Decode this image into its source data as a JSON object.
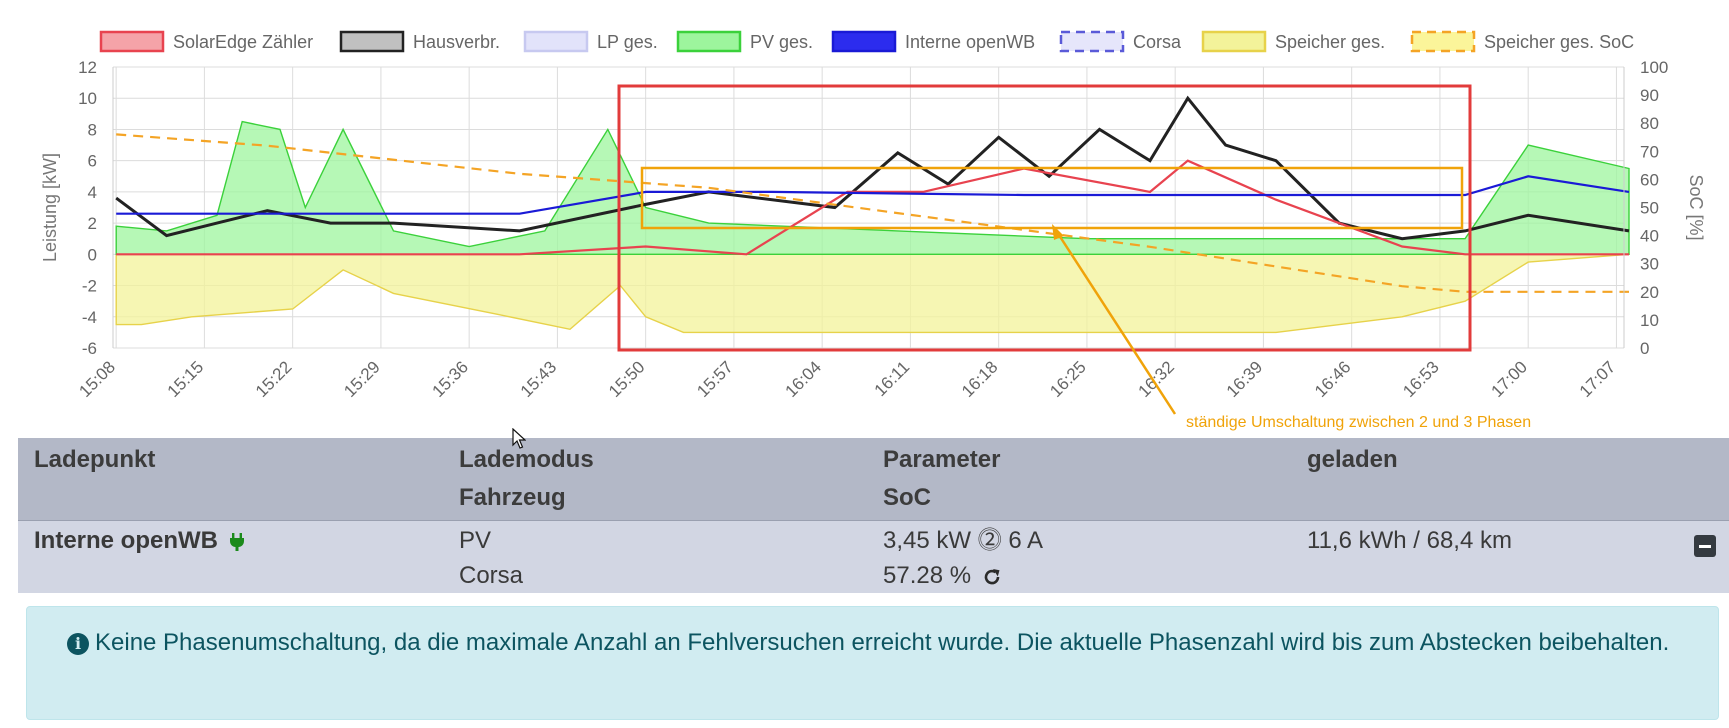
{
  "chart_data": {
    "type": "area",
    "legend": [
      {
        "name": "SolarEdge Zähler",
        "color": "#e8434f",
        "fill": "#f5a3a8",
        "dashed": false
      },
      {
        "name": "Hausverbr.",
        "color": "#222222",
        "fill": "#c0c0c0",
        "dashed": false
      },
      {
        "name": "LP ges.",
        "color": "#c7c9f0",
        "fill": "#e2e3fa",
        "dashed": false
      },
      {
        "name": "PV ges.",
        "color": "#3bd13b",
        "fill": "#9df59d",
        "dashed": false
      },
      {
        "name": "Interne openWB",
        "color": "#1a1ad6",
        "fill": "#2c2cee",
        "dashed": false
      },
      {
        "name": "Corsa",
        "color": "#5a5ad8",
        "fill": "#e6e6fb",
        "dashed": true
      },
      {
        "name": "Speicher ges.",
        "color": "#e7d24a",
        "fill": "#f3f39a",
        "dashed": false
      },
      {
        "name": "Speicher ges. SoC",
        "color": "#f4a425",
        "fill": "#fbf59a",
        "dashed": true
      }
    ],
    "x_ticks": [
      "15:08",
      "15:15",
      "15:22",
      "15:29",
      "15:36",
      "15:43",
      "15:50",
      "15:57",
      "16:04",
      "16:11",
      "16:18",
      "16:25",
      "16:32",
      "16:39",
      "16:46",
      "16:53",
      "17:00",
      "17:07"
    ],
    "ylabel": "Leistung [kW]",
    "ylim": [
      -6,
      12
    ],
    "y_ticks": [
      12,
      10,
      8,
      6,
      4,
      2,
      0,
      -2,
      -4,
      -6
    ],
    "y2label": "SoC [%]",
    "y2lim": [
      0,
      100
    ],
    "y2_ticks": [
      100,
      90,
      80,
      70,
      60,
      50,
      40,
      30,
      20,
      10,
      0
    ],
    "grid": true,
    "legend_position": "top",
    "series": [
      {
        "name": "Speicher ges.",
        "kind": "area",
        "x": [
          "15:08",
          "15:10",
          "15:14",
          "15:22",
          "15:26",
          "15:30",
          "15:38",
          "15:44",
          "15:48",
          "15:50",
          "15:53",
          "16:00",
          "16:20",
          "16:40",
          "16:50",
          "16:55",
          "17:00",
          "17:08"
        ],
        "values": [
          -4.5,
          -4.5,
          -4.0,
          -3.5,
          -1.0,
          -2.5,
          -3.8,
          -4.8,
          -2.0,
          -4.0,
          -5.0,
          -5.0,
          -5.0,
          -5.0,
          -4.0,
          -3.0,
          -0.5,
          0.0
        ]
      },
      {
        "name": "PV ges.",
        "kind": "area",
        "x": [
          "15:08",
          "15:12",
          "15:16",
          "15:18",
          "15:21",
          "15:23",
          "15:26",
          "15:30",
          "15:36",
          "15:42",
          "15:47",
          "15:50",
          "15:55",
          "16:10",
          "16:25",
          "16:40",
          "16:50",
          "16:55",
          "17:00",
          "17:08"
        ],
        "values": [
          1.8,
          1.5,
          2.5,
          8.5,
          8.0,
          3.0,
          8.0,
          1.5,
          0.5,
          1.5,
          8.0,
          3.0,
          2.0,
          1.5,
          1.0,
          1.0,
          1.0,
          1.0,
          7.0,
          5.5
        ]
      },
      {
        "name": "Hausverbr.",
        "kind": "line",
        "x": [
          "15:08",
          "15:12",
          "15:16",
          "15:20",
          "15:25",
          "15:30",
          "15:40",
          "15:50",
          "15:55",
          "16:05",
          "16:10",
          "16:14",
          "16:18",
          "16:22",
          "16:26",
          "16:30",
          "16:33",
          "16:36",
          "16:40",
          "16:45",
          "16:50",
          "16:55",
          "17:00",
          "17:08"
        ],
        "values": [
          3.6,
          1.2,
          2.0,
          2.8,
          2.0,
          2.0,
          1.5,
          3.2,
          4.0,
          3.0,
          6.5,
          4.5,
          7.5,
          5.0,
          8.0,
          6.0,
          10.0,
          7.0,
          6.0,
          2.0,
          1.0,
          1.5,
          2.5,
          1.5
        ]
      },
      {
        "name": "SolarEdge Zähler",
        "kind": "line",
        "x": [
          "15:08",
          "15:20",
          "15:40",
          "15:50",
          "15:58",
          "16:06",
          "16:12",
          "16:20",
          "16:30",
          "16:33",
          "16:40",
          "16:50",
          "16:55",
          "17:08"
        ],
        "values": [
          0,
          0,
          0,
          0.5,
          0,
          4.0,
          4.0,
          5.5,
          4.0,
          6.0,
          3.5,
          0.5,
          0,
          0
        ]
      },
      {
        "name": "Interne openWB",
        "kind": "line",
        "x": [
          "15:08",
          "15:20",
          "15:40",
          "15:50",
          "16:00",
          "16:20",
          "16:40",
          "16:55",
          "17:00",
          "17:08"
        ],
        "values": [
          2.6,
          2.6,
          2.6,
          4.0,
          4.0,
          3.8,
          3.8,
          3.8,
          5.0,
          4.0
        ]
      },
      {
        "name": "Speicher ges. SoC",
        "kind": "line",
        "axis": "y2",
        "x": [
          "15:08",
          "15:20",
          "15:40",
          "15:55",
          "16:10",
          "16:30",
          "16:50",
          "16:55",
          "17:08"
        ],
        "values": [
          76,
          72,
          62,
          57,
          48,
          36,
          22,
          20,
          20
        ]
      }
    ],
    "annotation": "ständige Umschaltung zwischen 2 und 3 Phasen"
  },
  "table": {
    "headers": {
      "col1": "Ladepunkt",
      "col2_line1": "Lademodus",
      "col2_line2": "Fahrzeug",
      "col3_line1": "Parameter",
      "col3_line2": "SoC",
      "col4": "geladen"
    },
    "row": {
      "ladepunkt": "Interne openWB",
      "lademodus": "PV",
      "fahrzeug": "Corsa",
      "parameter": "3,45 kW ⓶ 6 A",
      "soc": "57.28 %",
      "geladen": "11,6 kWh / 68,4 km"
    },
    "alert": "Keine Phasenumschaltung, da die maximale Anzahl an Fehlversuchen erreicht wurde. Die aktuelle Phasenzahl wird bis zum Abstecken beibehalten."
  },
  "colors": {
    "highlight_red": "#e23b3b",
    "highlight_orange": "#f0a30a",
    "table_header": "#b3b8c7",
    "table_row": "#d2d6e3",
    "alert_bg": "#d1ecf1",
    "alert_text": "#0c5460"
  },
  "icons": {
    "plug": "plug-icon",
    "info": "info-icon",
    "refresh": "refresh-icon",
    "collapse": "minus-icon"
  }
}
